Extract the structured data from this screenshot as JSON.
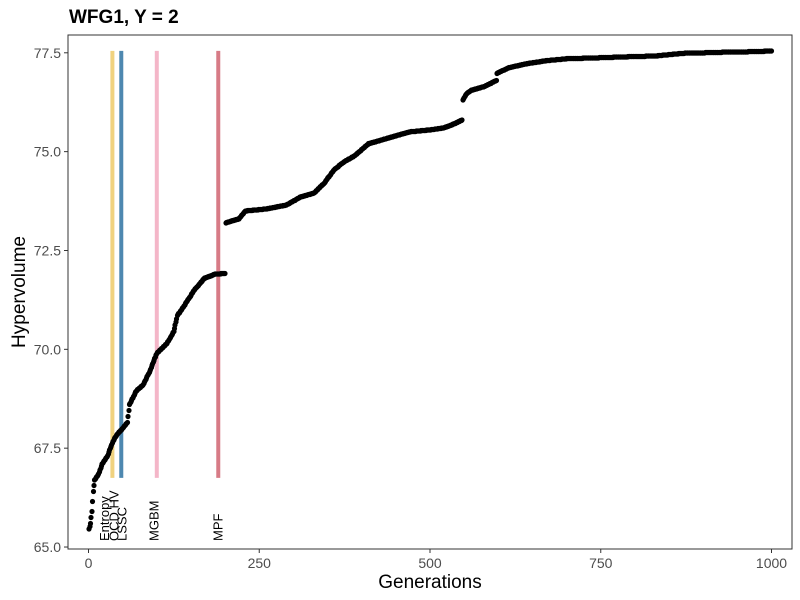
{
  "chart_data": {
    "type": "scatter",
    "title": "WFG1, Y = 2",
    "xlabel": "Generations",
    "ylabel": "Hypervolume",
    "xlim": [
      -30,
      1030
    ],
    "ylim": [
      64.95,
      77.95
    ],
    "xticks": [
      0,
      250,
      500,
      750,
      1000
    ],
    "xtick_labels": [
      "0",
      "250",
      "500",
      "750",
      "1000"
    ],
    "yticks": [
      65.0,
      67.5,
      70.0,
      72.5,
      75.0,
      77.5
    ],
    "ytick_labels": [
      "65.0",
      "67.5",
      "70.0",
      "72.5",
      "75.0",
      "77.5"
    ],
    "grid": false,
    "series": [
      {
        "color": "#000000",
        "curve": [
          [
            1,
            65.45
          ],
          [
            3,
            65.6
          ],
          [
            5,
            65.9
          ],
          [
            7,
            66.4
          ],
          [
            9,
            66.7
          ],
          [
            15,
            66.85
          ],
          [
            20,
            67.1
          ],
          [
            28,
            67.3
          ],
          [
            32,
            67.5
          ],
          [
            38,
            67.75
          ],
          [
            42,
            67.85
          ],
          [
            50,
            68.0
          ],
          [
            57,
            68.15
          ],
          [
            60,
            68.6
          ],
          [
            70,
            68.95
          ],
          [
            80,
            69.1
          ],
          [
            90,
            69.45
          ],
          [
            100,
            69.9
          ],
          [
            115,
            70.15
          ],
          [
            125,
            70.45
          ],
          [
            130,
            70.85
          ],
          [
            140,
            71.1
          ],
          [
            155,
            71.5
          ],
          [
            170,
            71.8
          ],
          [
            185,
            71.9
          ],
          [
            200,
            71.92
          ],
          [
            201,
            73.2
          ],
          [
            220,
            73.3
          ],
          [
            230,
            73.5
          ],
          [
            260,
            73.55
          ],
          [
            290,
            73.65
          ],
          [
            310,
            73.85
          ],
          [
            330,
            73.95
          ],
          [
            345,
            74.2
          ],
          [
            360,
            74.55
          ],
          [
            375,
            74.75
          ],
          [
            390,
            74.9
          ],
          [
            400,
            75.05
          ],
          [
            410,
            75.2
          ],
          [
            430,
            75.3
          ],
          [
            450,
            75.4
          ],
          [
            470,
            75.5
          ],
          [
            500,
            75.55
          ],
          [
            520,
            75.6
          ],
          [
            535,
            75.7
          ],
          [
            547,
            75.8
          ],
          [
            548,
            76.3
          ],
          [
            553,
            76.45
          ],
          [
            560,
            76.55
          ],
          [
            580,
            76.65
          ],
          [
            597,
            76.8
          ],
          [
            598,
            76.98
          ],
          [
            615,
            77.12
          ],
          [
            640,
            77.22
          ],
          [
            670,
            77.3
          ],
          [
            700,
            77.35
          ],
          [
            740,
            77.37
          ],
          [
            790,
            77.4
          ],
          [
            830,
            77.42
          ],
          [
            860,
            77.47
          ],
          [
            880,
            77.5
          ],
          [
            900,
            77.5
          ],
          [
            940,
            77.52
          ],
          [
            980,
            77.53
          ],
          [
            1000,
            77.55
          ]
        ]
      }
    ],
    "vertical_lines": [
      {
        "x": 35,
        "label": "Entropy",
        "color": "#f0d27f"
      },
      {
        "x": 48,
        "label": "OCD HV",
        "color": "#4e88b0",
        "label_second": "LSSC"
      },
      {
        "x": 100,
        "label": "MGBM",
        "color": "#f4b6c8"
      },
      {
        "x": 190,
        "label": "MPF",
        "color": "#d77b86"
      }
    ]
  }
}
